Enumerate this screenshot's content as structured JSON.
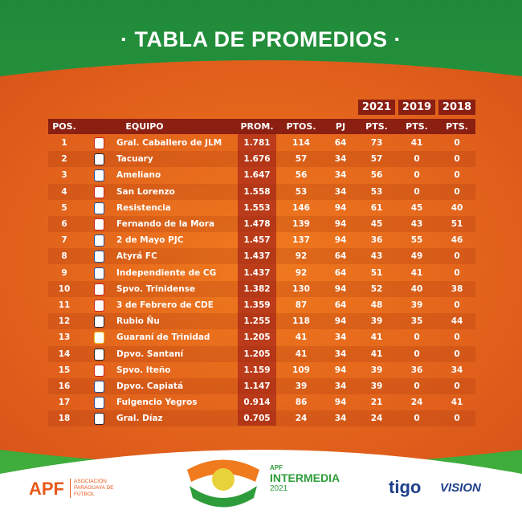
{
  "header": {
    "title": "· TABLA DE PROMEDIOS ·"
  },
  "table": {
    "years": [
      "2021",
      "2019",
      "2018"
    ],
    "columns": [
      "POS.",
      "EQUIPO",
      "PROM.",
      "PTOS.",
      "PJ",
      "PTS.",
      "PTS.",
      "PTS."
    ],
    "rows": [
      [
        "1",
        "Gral. Caballero de JLM",
        "1.781",
        "114",
        "64",
        "73",
        "41",
        "0"
      ],
      [
        "2",
        "Tacuary",
        "1.676",
        "57",
        "34",
        "57",
        "0",
        "0"
      ],
      [
        "3",
        "Ameliano",
        "1.647",
        "56",
        "34",
        "56",
        "0",
        "0"
      ],
      [
        "4",
        "San Lorenzo",
        "1.558",
        "53",
        "34",
        "53",
        "0",
        "0"
      ],
      [
        "5",
        "Resistencia",
        "1.553",
        "146",
        "94",
        "61",
        "45",
        "40"
      ],
      [
        "6",
        "Fernando de la Mora",
        "1.478",
        "139",
        "94",
        "45",
        "43",
        "51"
      ],
      [
        "7",
        "2 de Mayo PJC",
        "1.457",
        "137",
        "94",
        "36",
        "55",
        "46"
      ],
      [
        "8",
        "Atyrá FC",
        "1.437",
        "92",
        "64",
        "43",
        "49",
        "0"
      ],
      [
        "9",
        "Independiente de CG",
        "1.437",
        "92",
        "64",
        "51",
        "41",
        "0"
      ],
      [
        "10",
        "Spvo. Trinidense",
        "1.382",
        "130",
        "94",
        "52",
        "40",
        "38"
      ],
      [
        "11",
        "3 de Febrero de CDE",
        "1.359",
        "87",
        "64",
        "48",
        "39",
        "0"
      ],
      [
        "12",
        "Rubio Ñu",
        "1.255",
        "118",
        "94",
        "39",
        "35",
        "44"
      ],
      [
        "13",
        "Guaraní de Trinidad",
        "1.205",
        "41",
        "34",
        "41",
        "0",
        "0"
      ],
      [
        "14",
        "Dpvo. Santaní",
        "1.205",
        "41",
        "34",
        "41",
        "0",
        "0"
      ],
      [
        "15",
        "Spvo. Iteño",
        "1.159",
        "109",
        "94",
        "39",
        "36",
        "34"
      ],
      [
        "16",
        "Dpvo. Capiatá",
        "1.147",
        "39",
        "34",
        "39",
        "0",
        "0"
      ],
      [
        "17",
        "Fulgencio Yegros",
        "0.914",
        "86",
        "94",
        "21",
        "24",
        "41"
      ],
      [
        "18",
        "Gral. Díaz",
        "0.705",
        "24",
        "34",
        "24",
        "0",
        "0"
      ]
    ]
  },
  "footer": {
    "apf": "APF",
    "apf_name": "ASOCIACIÓN PARAGUAYA DE FÚTBOL",
    "event_org": "APF",
    "event": "INTERMEDIA",
    "event_year": "2021",
    "sponsor1": "tigo",
    "sponsor2": "VISION"
  }
}
